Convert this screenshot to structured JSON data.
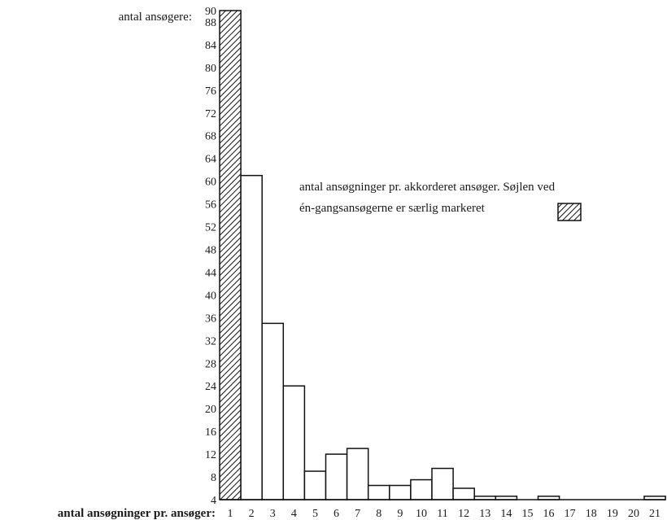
{
  "chart_data": {
    "type": "bar",
    "title": "",
    "ylabel": "antal ansøgere:",
    "xlabel": "antal ansøgninger pr. ansøger:",
    "ylim": [
      4,
      90
    ],
    "yticks": [
      4,
      8,
      12,
      16,
      20,
      24,
      28,
      32,
      36,
      40,
      44,
      48,
      52,
      56,
      60,
      64,
      68,
      72,
      76,
      80,
      84,
      88,
      90
    ],
    "categories": [
      "1",
      "2",
      "3",
      "4",
      "5",
      "6",
      "7",
      "8",
      "9",
      "10",
      "11",
      "12",
      "13",
      "14",
      "15",
      "16",
      "17",
      "18",
      "19",
      "20",
      "21"
    ],
    "values": [
      90,
      61,
      35,
      24,
      9,
      12,
      13,
      6.5,
      6.5,
      7.5,
      9.5,
      6,
      4.6,
      4.6,
      4,
      4.6,
      4,
      4,
      4,
      4,
      4.6
    ],
    "highlight_index": 0,
    "highlight_pattern": "diagonal-hatch",
    "bar_fill": "#ffffff",
    "bar_stroke": "#111111",
    "annotation": {
      "line1": "antal ansøgninger pr. akkorderet ansøger. Søjlen ved",
      "line2": "én-gangsansøgerne er særlig markeret"
    },
    "grid": false
  }
}
